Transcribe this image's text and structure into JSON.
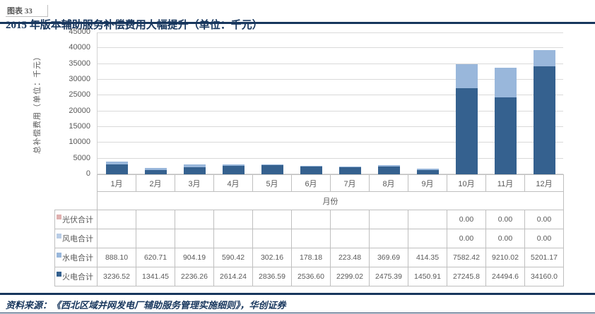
{
  "figure": {
    "label": "图表 33",
    "title": "2015 年版本辅助服务补偿费用大幅提升（单位：千元）",
    "source": "资料来源：《西北区域并网发电厂辅助服务管理实施细则》，华创证券"
  },
  "colors": {
    "accent_dark_blue": "#17365D",
    "gridline": "#D9D9D9",
    "table_border": "#BFBFBF",
    "axis_text": "#595959"
  },
  "chart_data": {
    "type": "bar",
    "stacked": true,
    "title": "",
    "xlabel": "月份",
    "ylabel": "总补偿费用（单位：千元）",
    "ylim": [
      0,
      45000
    ],
    "y_ticks": [
      0,
      5000,
      10000,
      15000,
      20000,
      25000,
      30000,
      35000,
      40000,
      45000
    ],
    "grid": true,
    "legend_position": "table-left",
    "categories": [
      "1月",
      "2月",
      "3月",
      "4月",
      "5月",
      "6月",
      "7月",
      "8月",
      "9月",
      "10月",
      "11月",
      "12月"
    ],
    "series": [
      {
        "name": "光伏合计",
        "color": "#DFB0AF",
        "values": [
          null,
          null,
          null,
          null,
          null,
          null,
          null,
          null,
          null,
          0,
          0,
          0
        ]
      },
      {
        "name": "风电合计",
        "color": "#B9CDE5",
        "values": [
          null,
          null,
          null,
          null,
          null,
          null,
          null,
          null,
          null,
          0,
          0,
          0
        ]
      },
      {
        "name": "水电合计",
        "color": "#99B7DB",
        "values": [
          888.1,
          620.71,
          904.19,
          590.42,
          302.16,
          178.18,
          223.48,
          369.69,
          414.35,
          7582.42,
          9210.02,
          5201.17
        ]
      },
      {
        "name": "火电合计",
        "color": "#35618F",
        "values": [
          3236.52,
          1341.45,
          2236.26,
          2614.24,
          2836.59,
          2536.6,
          2299.02,
          2475.39,
          1450.91,
          27245.8,
          24494.6,
          34160.0
        ]
      }
    ],
    "stacking_order_bottom_to_top": [
      "火电合计",
      "水电合计",
      "风电合计",
      "光伏合计"
    ]
  },
  "table": {
    "rows": [
      {
        "label": "光伏合计",
        "color": "#DFB0AF",
        "values": [
          "",
          "",
          "",
          "",
          "",
          "",
          "",
          "",
          "",
          "0.00",
          "0.00",
          "0.00"
        ]
      },
      {
        "label": "风电合计",
        "color": "#B9CDE5",
        "values": [
          "",
          "",
          "",
          "",
          "",
          "",
          "",
          "",
          "",
          "0.00",
          "0.00",
          "0.00"
        ]
      },
      {
        "label": "水电合计",
        "color": "#99B7DB",
        "values": [
          "888.10",
          "620.71",
          "904.19",
          "590.42",
          "302.16",
          "178.18",
          "223.48",
          "369.69",
          "414.35",
          "7582.42",
          "9210.02",
          "5201.17"
        ]
      },
      {
        "label": "火电合计",
        "color": "#35618F",
        "values": [
          "3236.52",
          "1341.45",
          "2236.26",
          "2614.24",
          "2836.59",
          "2536.60",
          "2299.02",
          "2475.39",
          "1450.91",
          "27245.8",
          "24494.6",
          "34160.0"
        ]
      }
    ]
  }
}
